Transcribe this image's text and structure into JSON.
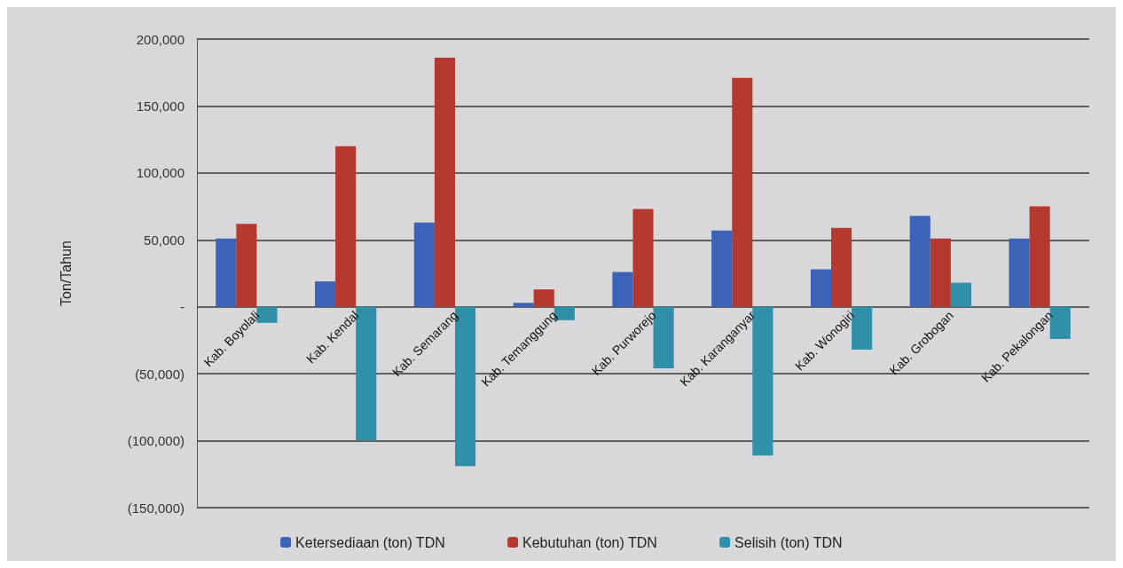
{
  "chart_data": {
    "type": "bar",
    "ylabel": "Ton/Tahun",
    "categories": [
      "Kab. Boyolali",
      "Kab. Kendal",
      "Kab. Semarang",
      "Kab. Temanggung",
      "Kab. Purworejo",
      "Kab. Karanganyar",
      "Kab. Wonogiri",
      "Kab. Grobogan",
      "Kab. Pekalongan"
    ],
    "series": [
      {
        "name": "Ketersediaan (ton) TDN",
        "color": "#3d63b8",
        "values": [
          51000,
          19000,
          63000,
          3000,
          26000,
          57000,
          28000,
          68000,
          51000
        ]
      },
      {
        "name": "Kebutuhan (ton) TDN",
        "color": "#b5392f",
        "values": [
          62000,
          120000,
          186000,
          13000,
          73000,
          171000,
          59000,
          51000,
          75000
        ]
      },
      {
        "name": "Selisih (ton) TDN",
        "color": "#3090aa",
        "values": [
          -12000,
          -100000,
          -119000,
          -10000,
          -46000,
          -111000,
          -32000,
          18000,
          -24000
        ]
      }
    ],
    "ylim": [
      -150000,
      200000
    ],
    "yticks": [
      {
        "value": -150000,
        "label": "(150,000)"
      },
      {
        "value": -100000,
        "label": "(100,000)"
      },
      {
        "value": -50000,
        "label": "(50,000)"
      },
      {
        "value": 0,
        "label": "-"
      },
      {
        "value": 50000,
        "label": "50,000"
      },
      {
        "value": 100000,
        "label": "100,000"
      },
      {
        "value": 150000,
        "label": "150,000"
      },
      {
        "value": 200000,
        "label": "200,000"
      }
    ],
    "grid": "y",
    "legend": "bottom"
  }
}
